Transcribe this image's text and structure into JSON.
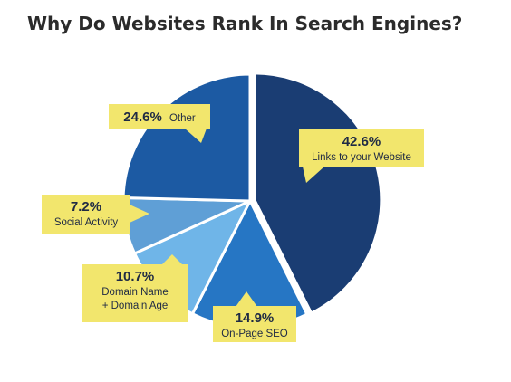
{
  "title": "Why Do Websites Rank In Search Engines?",
  "chart_data": {
    "type": "pie",
    "title": "Why Do Websites Rank In Search Engines?",
    "slices": [
      {
        "label_lines": [
          "Links to your Website"
        ],
        "value": 42.6,
        "pct_text": "42.6%",
        "color": "#1a3d73"
      },
      {
        "label_lines": [
          "On-Page SEO"
        ],
        "value": 14.9,
        "pct_text": "14.9%",
        "color": "#2676c4"
      },
      {
        "label_lines": [
          "Domain Name",
          "+ Domain Age"
        ],
        "value": 10.7,
        "pct_text": "10.7%",
        "color": "#6fb5e8"
      },
      {
        "label_lines": [
          "Social Activity"
        ],
        "value": 7.2,
        "pct_text": "7.2%",
        "color": "#5f9fd6"
      },
      {
        "label_lines": [
          "Other"
        ],
        "value": 24.6,
        "pct_text": "24.6%",
        "color": "#1c5aa3"
      }
    ],
    "callout_color": "#f2e66d"
  }
}
